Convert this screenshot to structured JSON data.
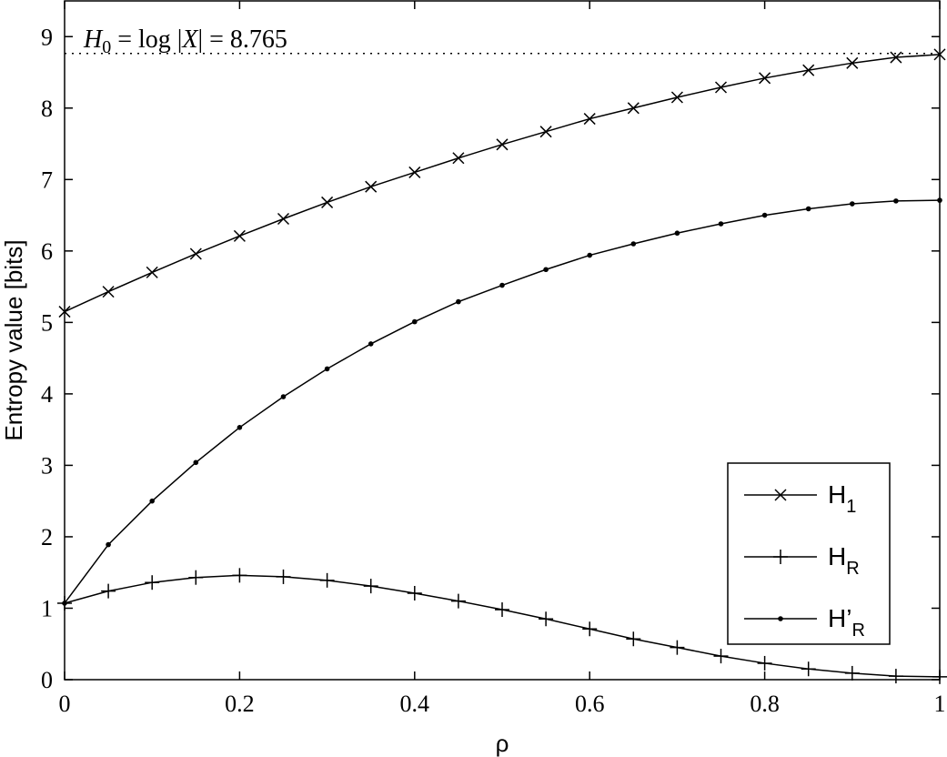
{
  "chart_data": {
    "type": "line",
    "xlabel": "ρ",
    "ylabel": "Entropy value [bits]",
    "xlim": [
      0,
      1
    ],
    "ylim": [
      0,
      9.5
    ],
    "x_ticks": [
      0,
      0.2,
      0.4,
      0.6,
      0.8,
      1
    ],
    "x_tick_labels": [
      "0",
      "0.2",
      "0.4",
      "0.6",
      "0.8",
      "1"
    ],
    "y_ticks": [
      0,
      1,
      2,
      3,
      4,
      5,
      6,
      7,
      8,
      9
    ],
    "y_tick_labels": [
      "0",
      "1",
      "2",
      "3",
      "4",
      "5",
      "6",
      "7",
      "8",
      "9"
    ],
    "grid": false,
    "legend_position": "bottom-right",
    "x": [
      0,
      0.05,
      0.1,
      0.15,
      0.2,
      0.25,
      0.3,
      0.35,
      0.4,
      0.45,
      0.5,
      0.55,
      0.6,
      0.65,
      0.7,
      0.75,
      0.8,
      0.85,
      0.9,
      0.95,
      1
    ],
    "series": [
      {
        "name": "H",
        "subscript": "1",
        "marker": "x",
        "values": [
          5.15,
          5.43,
          5.7,
          5.96,
          6.21,
          6.45,
          6.68,
          6.9,
          7.1,
          7.3,
          7.49,
          7.67,
          7.85,
          8.0,
          8.15,
          8.29,
          8.42,
          8.53,
          8.63,
          8.71,
          8.75
        ]
      },
      {
        "name": "H",
        "subscript": "R",
        "marker": "plus",
        "values": [
          1.07,
          1.24,
          1.36,
          1.43,
          1.46,
          1.44,
          1.39,
          1.31,
          1.21,
          1.1,
          0.98,
          0.85,
          0.71,
          0.57,
          0.45,
          0.33,
          0.23,
          0.15,
          0.09,
          0.05,
          0.04
        ]
      },
      {
        "name": "H’",
        "subscript": "R",
        "marker": "dot",
        "values": [
          1.07,
          1.89,
          2.5,
          3.04,
          3.53,
          3.96,
          4.35,
          4.7,
          5.01,
          5.29,
          5.52,
          5.74,
          5.94,
          6.1,
          6.25,
          6.38,
          6.5,
          6.59,
          6.66,
          6.7,
          6.71
        ]
      }
    ],
    "reference_line": {
      "y": 8.765,
      "style": "dotted"
    },
    "annotation": {
      "h_symbol": "H",
      "h_subscript": "0",
      "eq1": " = log |",
      "var": "X",
      "eq2": "| = 8.765"
    }
  }
}
